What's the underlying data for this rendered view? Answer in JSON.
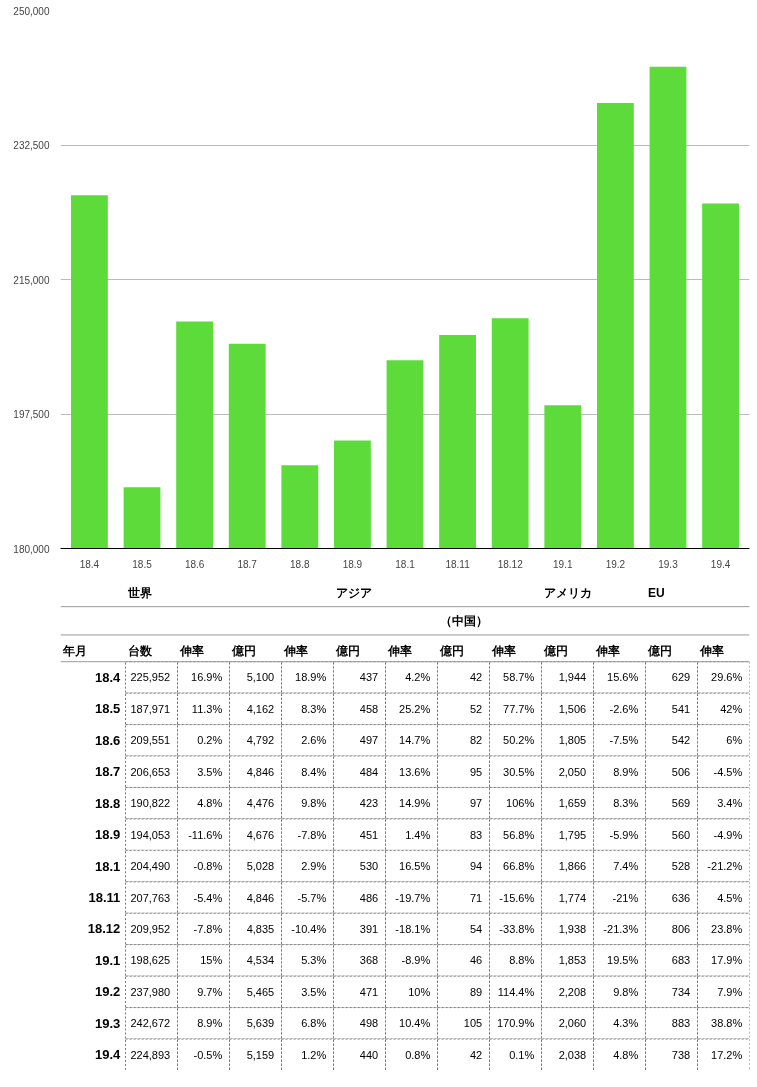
{
  "chart_data": [
    {
      "type": "bar",
      "categories": [
        "18.4",
        "18.5",
        "18.6",
        "18.7",
        "18.8",
        "18.9",
        "18.1",
        "18.11",
        "18.12",
        "19.1",
        "19.2",
        "19.3",
        "19.4"
      ],
      "values": [
        225952,
        187971,
        209551,
        206653,
        190822,
        194053,
        204490,
        207763,
        209952,
        198625,
        237980,
        242672,
        224893
      ],
      "color": "#5cdb3a",
      "ylim": [
        180000,
        250000
      ],
      "yticks": [
        {
          "value": 180000,
          "label": "180,000"
        },
        {
          "value": 197500,
          "label": "197,500"
        },
        {
          "value": 215000,
          "label": "215,000"
        },
        {
          "value": 232500,
          "label": "232,500"
        },
        {
          "value": 250000,
          "label": "250,000"
        }
      ],
      "grid": "y"
    },
    {
      "type": "other",
      "ylabel": "年月",
      "annotations": [
        "世界",
        "アジア",
        "アメリカ",
        "EU",
        "（中国）"
      ],
      "categories": [
        "台数",
        "伸率",
        "億円",
        "伸率",
        "億円",
        "伸率",
        "億円",
        "伸率",
        "億円",
        "伸率",
        "億円",
        "伸率"
      ],
      "y_categories": [
        "18.4",
        "18.5",
        "18.6",
        "18.7",
        "18.8",
        "18.9",
        "18.1",
        "18.11",
        "18.12",
        "19.1",
        "19.2",
        "19.3",
        "19.4"
      ],
      "cell_labels": [
        [
          "225,952",
          "16.9%",
          "5,100",
          "18.9%",
          "437",
          "4.2%",
          "42",
          "58.7%",
          "1,944",
          "15.6%",
          "629",
          "29.6%"
        ],
        [
          "187,971",
          "11.3%",
          "4,162",
          "8.3%",
          "458",
          "25.2%",
          "52",
          "77.7%",
          "1,506",
          "-2.6%",
          "541",
          "42%"
        ],
        [
          "209,551",
          "0.2%",
          "4,792",
          "2.6%",
          "497",
          "14.7%",
          "82",
          "50.2%",
          "1,805",
          "-7.5%",
          "542",
          "6%"
        ],
        [
          "206,653",
          "3.5%",
          "4,846",
          "8.4%",
          "484",
          "13.6%",
          "95",
          "30.5%",
          "2,050",
          "8.9%",
          "506",
          "-4.5%"
        ],
        [
          "190,822",
          "4.8%",
          "4,476",
          "9.8%",
          "423",
          "14.9%",
          "97",
          "106%",
          "1,659",
          "8.3%",
          "569",
          "3.4%"
        ],
        [
          "194,053",
          "-11.6%",
          "4,676",
          "-7.8%",
          "451",
          "1.4%",
          "83",
          "56.8%",
          "1,795",
          "-5.9%",
          "560",
          "-4.9%"
        ],
        [
          "204,490",
          "-0.8%",
          "5,028",
          "2.9%",
          "530",
          "16.5%",
          "94",
          "66.8%",
          "1,866",
          "7.4%",
          "528",
          "-21.2%"
        ],
        [
          "207,763",
          "-5.4%",
          "4,846",
          "-5.7%",
          "486",
          "-19.7%",
          "71",
          "-15.6%",
          "1,774",
          "-21%",
          "636",
          "4.5%"
        ],
        [
          "209,952",
          "-7.8%",
          "4,835",
          "-10.4%",
          "391",
          "-18.1%",
          "54",
          "-33.8%",
          "1,938",
          "-21.3%",
          "806",
          "23.8%"
        ],
        [
          "198,625",
          "15%",
          "4,534",
          "5.3%",
          "368",
          "-8.9%",
          "46",
          "8.8%",
          "1,853",
          "19.5%",
          "683",
          "17.9%"
        ],
        [
          "237,980",
          "9.7%",
          "5,465",
          "3.5%",
          "471",
          "10%",
          "89",
          "114.4%",
          "2,208",
          "9.8%",
          "734",
          "7.9%"
        ],
        [
          "242,672",
          "8.9%",
          "5,639",
          "6.8%",
          "498",
          "10.4%",
          "105",
          "170.9%",
          "2,060",
          "4.3%",
          "883",
          "38.8%"
        ],
        [
          "224,893",
          "-0.5%",
          "5,159",
          "1.2%",
          "440",
          "0.8%",
          "42",
          "0.1%",
          "2,038",
          "4.8%",
          "738",
          "17.2%"
        ]
      ]
    }
  ]
}
